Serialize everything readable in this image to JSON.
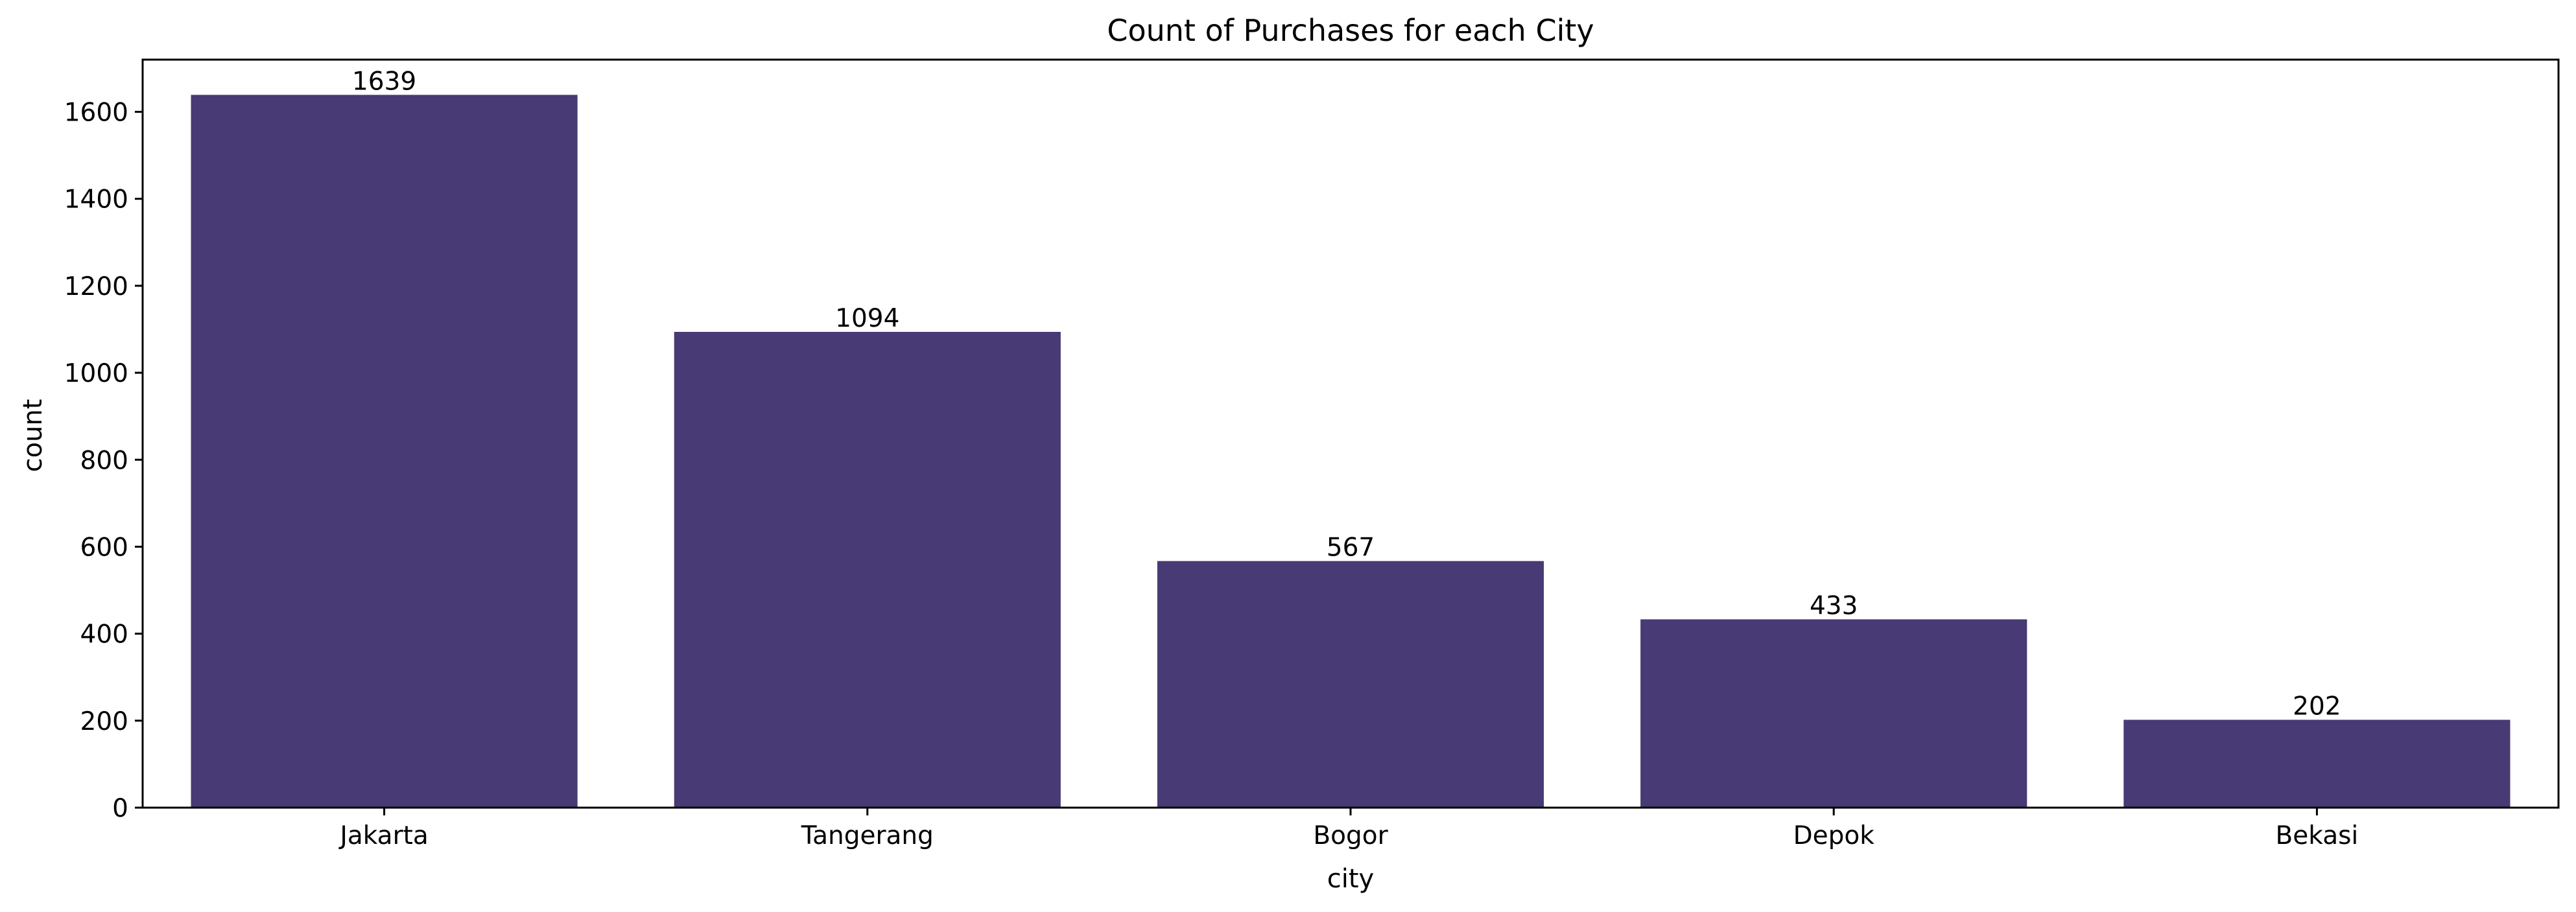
{
  "chart_data": {
    "type": "bar",
    "title": "Count of Purchases for each City",
    "xlabel": "city",
    "ylabel": "count",
    "categories": [
      "Jakarta",
      "Tangerang",
      "Bogor",
      "Depok",
      "Bekasi"
    ],
    "values": [
      1639,
      1094,
      567,
      433,
      202
    ],
    "data_labels": [
      "1639",
      "1094",
      "567",
      "433",
      "202"
    ],
    "ylim": [
      0,
      1720
    ],
    "yticks": [
      0,
      200,
      400,
      600,
      800,
      1000,
      1200,
      1400,
      1600
    ],
    "grid": false,
    "legend": "none",
    "bar_color": "#483a74"
  }
}
